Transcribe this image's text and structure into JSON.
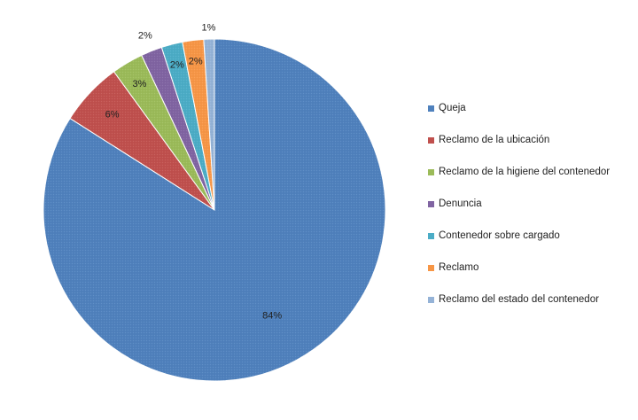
{
  "chart_data": {
    "type": "pie",
    "title": "",
    "legend_position": "right",
    "slices": [
      {
        "label": "Queja",
        "value": 84,
        "display": "84%",
        "color": "#4F81BD"
      },
      {
        "label": "Reclamo de la ubicación",
        "value": 6,
        "display": "6%",
        "color": "#C0504D"
      },
      {
        "label": "Reclamo de la higiene del contenedor",
        "value": 3,
        "display": "3%",
        "color": "#9BBB59"
      },
      {
        "label": "Denuncia",
        "value": 2,
        "display": "2%",
        "color": "#8064A2"
      },
      {
        "label": "Contenedor sobre cargado",
        "value": 2,
        "display": "2%",
        "color": "#4BACC6"
      },
      {
        "label": "Reclamo",
        "value": 2,
        "display": "2%",
        "color": "#F79646"
      },
      {
        "label": "Reclamo del estado del contenedor",
        "value": 1,
        "display": "1%",
        "color": "#95B3D7"
      }
    ]
  }
}
